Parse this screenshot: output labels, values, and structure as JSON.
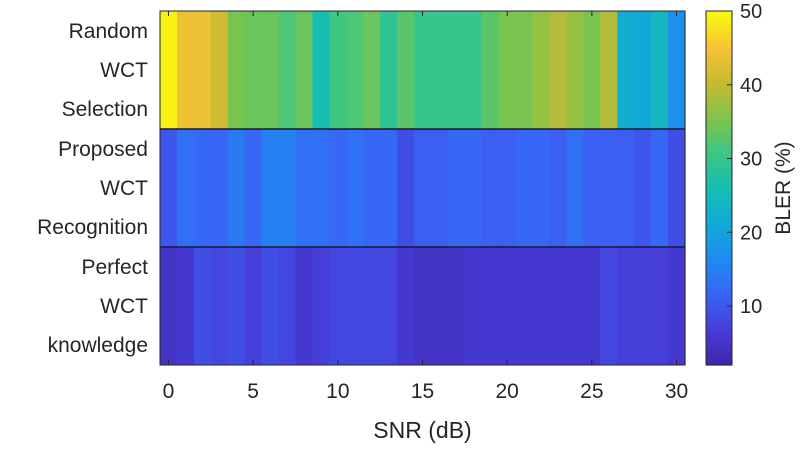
{
  "chart_data": {
    "type": "heatmap",
    "xlabel": "SNR (dB)",
    "x_ticks": [
      0,
      5,
      10,
      15,
      20,
      25,
      30
    ],
    "x_range": [
      -0.5,
      30.5
    ],
    "x": [
      0,
      1,
      2,
      3,
      4,
      5,
      6,
      7,
      8,
      9,
      10,
      11,
      12,
      13,
      14,
      15,
      16,
      17,
      18,
      19,
      20,
      21,
      22,
      23,
      24,
      25,
      26,
      27,
      28,
      29,
      30
    ],
    "colorbar": {
      "label": "BLER (%)",
      "ticks": [
        10,
        20,
        30,
        40,
        50
      ],
      "range": [
        2,
        50
      ],
      "colormap": "parula"
    },
    "rows": [
      {
        "label": [
          "Random",
          "WCT",
          "Selection"
        ],
        "values": [
          49,
          44,
          44,
          41,
          35,
          34,
          34,
          32,
          34,
          26,
          31,
          32,
          34,
          29,
          33,
          30,
          30,
          30,
          30,
          33,
          35,
          35,
          37,
          39,
          37,
          35,
          39,
          22,
          21,
          24,
          17
        ]
      },
      {
        "label": [
          "Proposed",
          "WCT",
          "Recognition"
        ],
        "values": [
          10,
          13,
          12,
          12,
          14,
          12,
          15,
          15,
          13,
          13,
          12,
          13,
          12,
          12,
          9,
          11,
          11,
          12,
          12,
          11,
          11,
          12,
          12,
          11,
          13,
          11,
          11,
          11,
          10,
          12,
          9
        ]
      },
      {
        "label": [
          "Perfect",
          "WCT",
          "knowledge"
        ],
        "values": [
          5,
          6,
          9,
          8,
          9,
          7,
          9,
          8,
          6,
          7,
          8,
          8,
          8,
          8,
          6,
          5,
          5,
          5,
          6,
          6,
          6,
          6,
          6,
          6,
          6,
          6,
          8,
          7,
          7,
          7,
          6
        ]
      }
    ]
  }
}
